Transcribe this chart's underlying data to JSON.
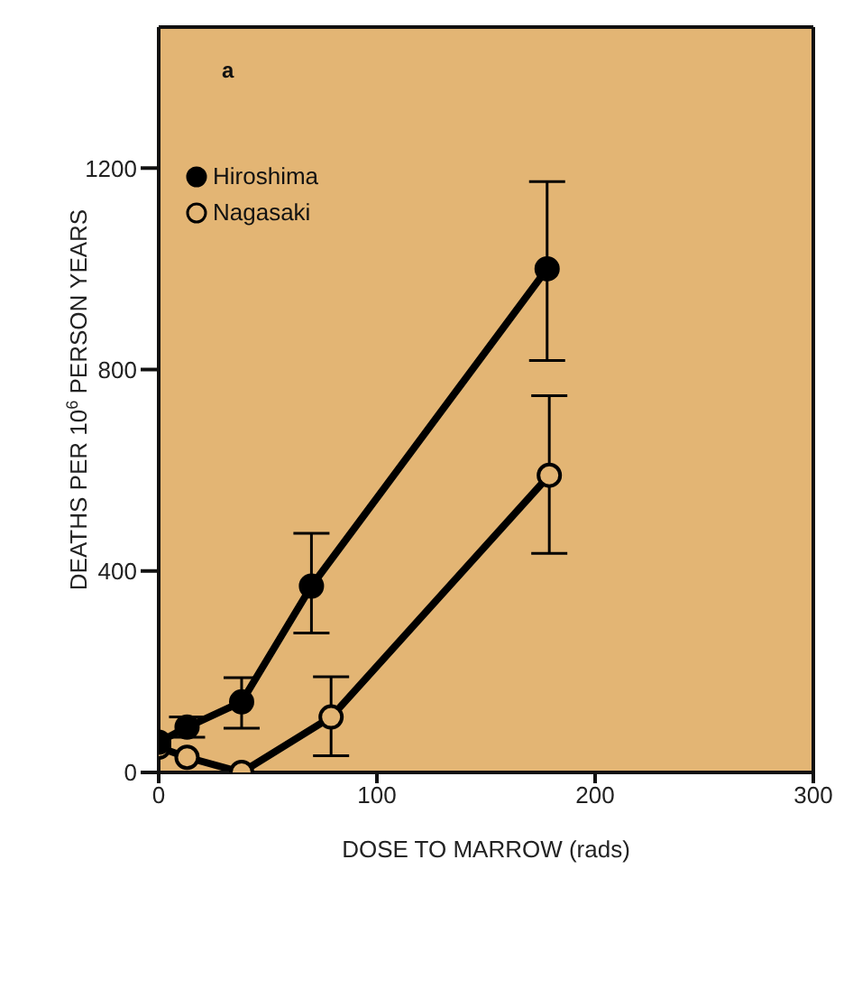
{
  "chart_data": {
    "type": "line",
    "xlabel": "DOSE TO MARROW (rads)",
    "ylabel": "DEATHS PER 10$^{6}$ PERSON YEARS",
    "annotations": [
      "a"
    ],
    "xlim": [
      0,
      300
    ],
    "xticks": [
      0,
      100,
      200,
      300
    ],
    "ylim": [
      0,
      1480
    ],
    "yticks": [
      0,
      400,
      800,
      1200
    ],
    "legend": "top left",
    "marker": "circle",
    "line_style": "solid",
    "series": [
      {
        "name": "Hiroshima",
        "color": "#000000",
        "x": [
          0,
          13,
          38,
          70,
          178
        ],
        "values": [
          60,
          90,
          140,
          370,
          1000
        ],
        "errors": [
          null,
          [
            70,
            110
          ],
          [
            88,
            188
          ],
          [
            277,
            475
          ],
          [
            818,
            1173
          ]
        ]
      },
      {
        "name": "Nagasaki",
        "color": "#000000",
        "x": [
          0,
          13,
          38,
          79,
          179
        ],
        "values": [
          50,
          30,
          0,
          110,
          590
        ],
        "errors": [
          null,
          null,
          null,
          [
            33,
            190
          ],
          [
            435,
            748
          ]
        ]
      }
    ]
  }
}
